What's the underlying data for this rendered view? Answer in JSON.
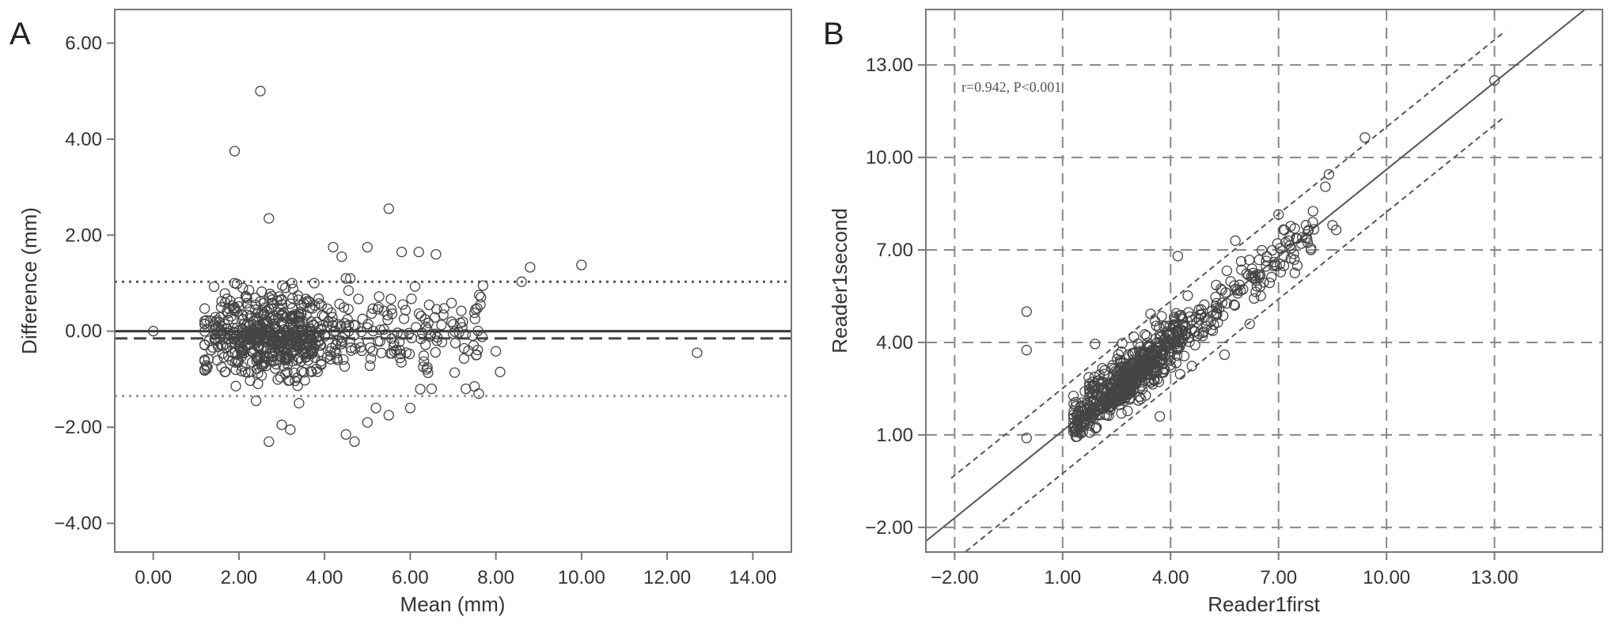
{
  "chart_data": [
    {
      "panel": "A",
      "type": "scatter",
      "xlabel": "Mean (mm)",
      "ylabel": "Difference (mm)",
      "xlim": [
        -0.9,
        14.9
      ],
      "ylim": [
        -4.6,
        6.7
      ],
      "xticks": [
        0,
        2,
        4,
        6,
        8,
        10,
        12,
        14
      ],
      "yticks": [
        -4,
        -2,
        0,
        2,
        4,
        6
      ],
      "tick_labels_x": [
        "0.00",
        "2.00",
        "4.00",
        "6.00",
        "8.00",
        "10.00",
        "12.00",
        "14.00"
      ],
      "tick_labels_y": [
        "−4.00",
        "−2.00",
        "0.00",
        "2.00",
        "4.00",
        "6.00"
      ],
      "grid": false,
      "reference_lines": [
        {
          "y": 0,
          "style": "solid"
        },
        {
          "y": -0.15,
          "style": "dashed"
        },
        {
          "y": 1.03,
          "style": "dotted"
        },
        {
          "y": -1.35,
          "style": "dotted"
        }
      ],
      "points_explicit": [
        [
          0.0,
          0.0
        ],
        [
          2.5,
          5.0
        ],
        [
          1.9,
          3.75
        ],
        [
          2.7,
          2.35
        ],
        [
          5.5,
          2.55
        ],
        [
          4.2,
          1.75
        ],
        [
          5.0,
          1.75
        ],
        [
          5.8,
          1.65
        ],
        [
          6.2,
          1.65
        ],
        [
          6.6,
          1.6
        ],
        [
          4.4,
          1.55
        ],
        [
          10.0,
          1.38
        ],
        [
          8.8,
          1.33
        ],
        [
          4.5,
          1.1
        ],
        [
          4.6,
          1.1
        ],
        [
          8.6,
          1.03
        ],
        [
          7.7,
          0.95
        ],
        [
          12.7,
          -0.45
        ],
        [
          8.1,
          -0.85
        ],
        [
          8.0,
          -0.42
        ],
        [
          7.5,
          -1.15
        ],
        [
          7.3,
          -1.2
        ],
        [
          7.6,
          -1.3
        ],
        [
          2.7,
          -2.3
        ],
        [
          3.0,
          -1.95
        ],
        [
          3.2,
          -2.05
        ],
        [
          4.5,
          -2.15
        ],
        [
          4.7,
          -2.3
        ],
        [
          5.2,
          -1.6
        ],
        [
          5.5,
          -1.75
        ],
        [
          5.0,
          -1.9
        ],
        [
          6.0,
          -1.6
        ],
        [
          2.4,
          -1.45
        ],
        [
          6.5,
          -1.2
        ]
      ],
      "points_cluster": {
        "n": 700,
        "x_range": [
          1.2,
          7.7
        ],
        "x_mode": 2.7,
        "y_center": -0.1,
        "y_sd": 0.42
      }
    },
    {
      "panel": "B",
      "type": "scatter",
      "xlabel": "Reader1first",
      "ylabel": "Reader1second",
      "xlim": [
        -2.8,
        16.0
      ],
      "ylim": [
        -2.8,
        14.8
      ],
      "xticks": [
        -2,
        1,
        4,
        7,
        10,
        13
      ],
      "yticks": [
        -2,
        1,
        4,
        7,
        10,
        13
      ],
      "tick_labels_x": [
        "−2.00",
        "1.00",
        "4.00",
        "7.00",
        "10.00",
        "13.00"
      ],
      "tick_labels_y": [
        "−2.00",
        "1.00",
        "4.00",
        "7.00",
        "10.00",
        "13.00"
      ],
      "grid": true,
      "annotation": "r=0.942, P<0.001",
      "fit_line": {
        "slope": 0.942,
        "intercept": 0.19
      },
      "prediction_band_offset": 1.38,
      "points_explicit": [
        [
          0.0,
          5.0
        ],
        [
          0.0,
          3.75
        ],
        [
          0.0,
          0.9
        ],
        [
          13.0,
          12.5
        ],
        [
          9.4,
          10.65
        ],
        [
          8.4,
          9.45
        ],
        [
          8.3,
          9.05
        ],
        [
          8.5,
          7.8
        ],
        [
          8.6,
          7.65
        ],
        [
          7.9,
          7.0
        ],
        [
          1.9,
          3.95
        ],
        [
          6.2,
          4.6
        ],
        [
          5.5,
          3.6
        ],
        [
          3.7,
          1.6
        ],
        [
          4.2,
          6.8
        ],
        [
          5.8,
          7.3
        ],
        [
          7.0,
          8.15
        ]
      ],
      "points_cluster": {
        "n": 720,
        "x_range": [
          1.3,
          8.0
        ],
        "x_mode": 3.0,
        "y_sd": 0.42
      }
    }
  ],
  "figure": {
    "panel_labels": [
      "A",
      "B"
    ]
  }
}
